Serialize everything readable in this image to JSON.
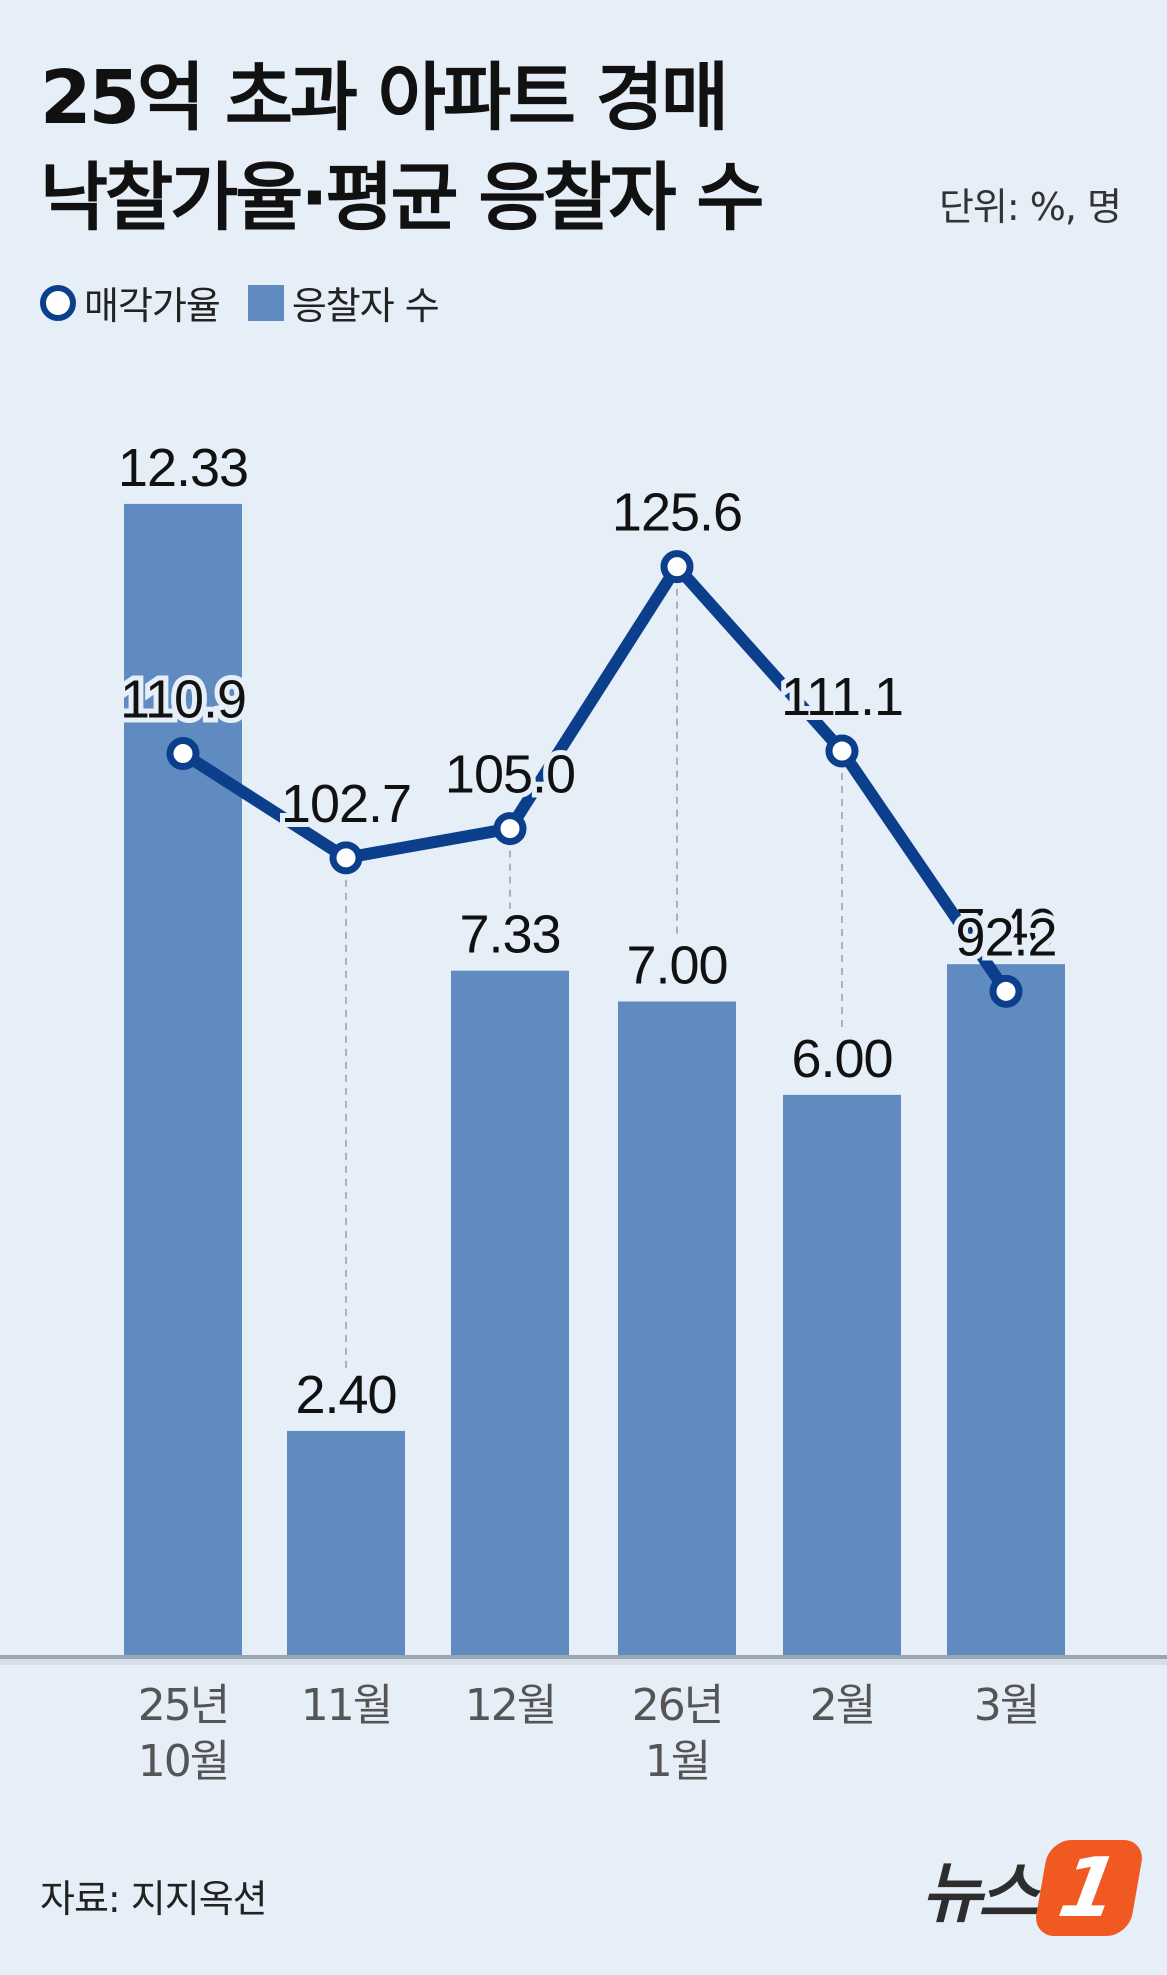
{
  "title_line1": "25억 초과 아파트 경매",
  "title_line2": "낙찰가율·평균 응찰자 수",
  "unit": "단위: %, 명",
  "legend": {
    "line_label": "매각가율",
    "bar_label": "응찰자 수"
  },
  "source": "자료: 지지옥션",
  "logo": {
    "text": "뉴스",
    "badge": "1"
  },
  "colors": {
    "bar": "#5f8bc0",
    "line": "#0b3f8c",
    "background": "#e6eef8",
    "baseline": "#9aa5b1",
    "logo": "#f05a22"
  },
  "chart_data": {
    "type": "bar+line",
    "categories": [
      "25년 10월",
      "11월",
      "12월",
      "26년 1월",
      "2월",
      "3월"
    ],
    "category_lines": [
      [
        "25년",
        "10월"
      ],
      [
        "11월"
      ],
      [
        "12월"
      ],
      [
        "26년",
        "1월"
      ],
      [
        "2월"
      ],
      [
        "3월"
      ]
    ],
    "series": [
      {
        "name": "응찰자 수",
        "type": "bar",
        "values": [
          12.33,
          2.4,
          7.33,
          7.0,
          6.0,
          7.4
        ],
        "labels": [
          "12.33",
          "2.40",
          "7.33",
          "7.00",
          "6.00",
          "7.40"
        ]
      },
      {
        "name": "매각가율",
        "type": "line",
        "values": [
          110.9,
          102.7,
          105.0,
          125.6,
          111.1,
          92.2
        ],
        "labels": [
          "110.9",
          "102.7",
          "105.0",
          "125.6",
          "111.1",
          "92.2"
        ]
      }
    ],
    "bar_ylim": [
      0,
      14.3
    ],
    "line_ylim": [
      40,
      145
    ],
    "grid": false,
    "legend_position": "top-left"
  }
}
